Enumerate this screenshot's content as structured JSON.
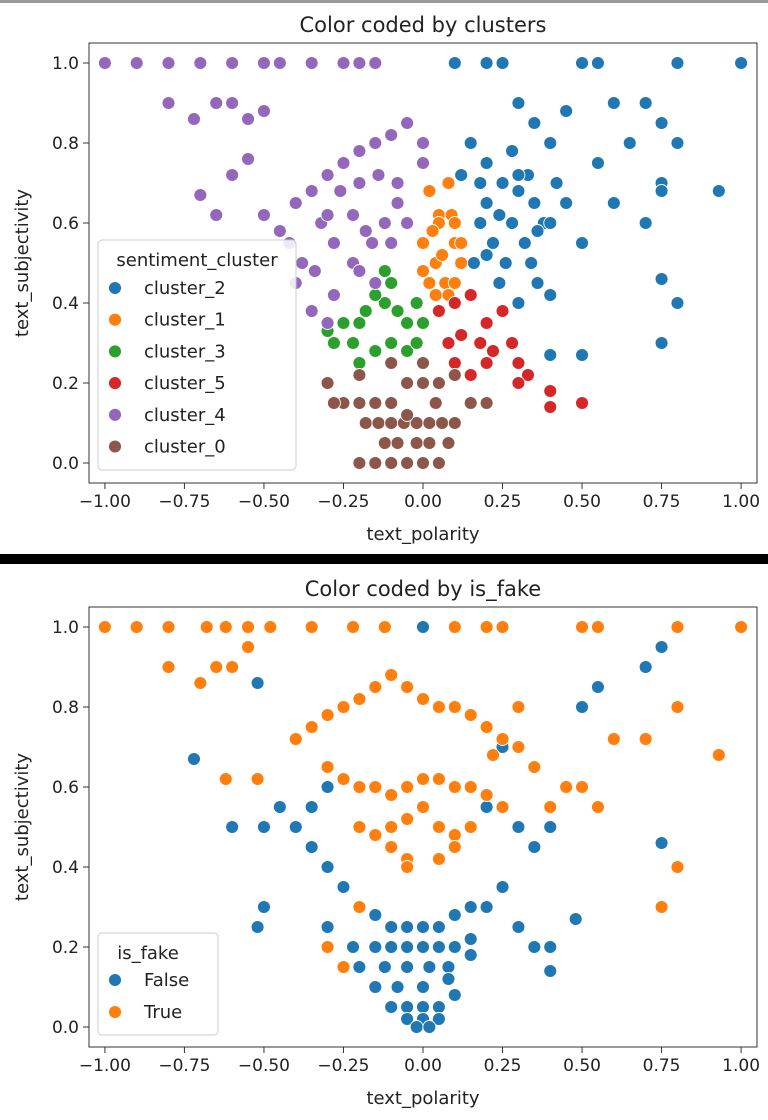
{
  "chart_data": [
    {
      "type": "scatter",
      "title": "Color coded by clusters",
      "xlabel": "text_polarity",
      "ylabel": "text_subjectivity",
      "xlim": [
        -1.05,
        1.05
      ],
      "ylim": [
        -0.05,
        1.05
      ],
      "xticks": [
        "-1.00",
        "-0.75",
        "-0.50",
        "-0.25",
        "0.00",
        "0.25",
        "0.50",
        "0.75",
        "1.00"
      ],
      "yticks": [
        "0.0",
        "0.2",
        "0.4",
        "0.6",
        "0.8",
        "1.0"
      ],
      "legend": {
        "title": "sentiment_cluster",
        "position": "left-middle",
        "entries": [
          {
            "label": "cluster_2",
            "color": "#1f77b4"
          },
          {
            "label": "cluster_1",
            "color": "#ff7f0e"
          },
          {
            "label": "cluster_3",
            "color": "#2ca02c"
          },
          {
            "label": "cluster_5",
            "color": "#d62728"
          },
          {
            "label": "cluster_4",
            "color": "#9467bd"
          },
          {
            "label": "cluster_0",
            "color": "#8c564b"
          }
        ]
      },
      "series": [
        {
          "name": "cluster_2",
          "x": [
            0.1,
            0.2,
            0.25,
            0.5,
            0.55,
            0.8,
            1.0,
            0.3,
            0.35,
            0.45,
            0.6,
            0.7,
            0.75,
            0.4,
            0.55,
            0.65,
            0.33,
            0.42,
            0.8,
            0.75,
            0.6,
            0.93,
            0.75,
            0.7,
            0.75,
            0.8,
            0.75,
            0.5,
            0.4,
            0.15,
            0.2,
            0.25,
            0.3,
            0.35,
            0.12,
            0.18,
            0.28,
            0.38,
            0.22,
            0.32,
            0.26,
            0.16,
            0.36,
            0.24,
            0.3,
            0.4,
            0.45,
            0.5,
            0.2,
            0.28,
            0.34,
            0.18,
            0.24,
            0.3,
            0.36,
            0.2,
            0.4
          ],
          "y": [
            1.0,
            1.0,
            1.0,
            1.0,
            1.0,
            1.0,
            1.0,
            0.9,
            0.85,
            0.88,
            0.9,
            0.9,
            0.85,
            0.8,
            0.75,
            0.8,
            0.72,
            0.7,
            0.8,
            0.7,
            0.65,
            0.68,
            0.46,
            0.6,
            0.3,
            0.4,
            0.68,
            0.27,
            0.27,
            0.8,
            0.75,
            0.7,
            0.72,
            0.65,
            0.72,
            0.6,
            0.6,
            0.6,
            0.55,
            0.55,
            0.5,
            0.5,
            0.45,
            0.45,
            0.4,
            0.6,
            0.65,
            0.55,
            0.65,
            0.78,
            0.5,
            0.7,
            0.62,
            0.68,
            0.58,
            0.52,
            0.42
          ]
        },
        {
          "name": "cluster_1",
          "x": [
            0.02,
            0.05,
            0.08,
            0.1,
            0.12,
            0.0,
            0.04,
            0.07,
            0.1,
            0.02,
            0.05,
            0.09,
            0.12,
            0.0,
            0.04,
            0.08,
            0.06,
            0.1,
            0.03
          ],
          "y": [
            0.68,
            0.62,
            0.7,
            0.55,
            0.5,
            0.55,
            0.5,
            0.45,
            0.45,
            0.45,
            0.6,
            0.62,
            0.55,
            0.48,
            0.42,
            0.42,
            0.52,
            0.6,
            0.58
          ]
        },
        {
          "name": "cluster_3",
          "x": [
            -0.1,
            -0.12,
            -0.15,
            -0.18,
            -0.2,
            -0.25,
            -0.22,
            -0.28,
            -0.08,
            -0.05,
            -0.02,
            0.0,
            -0.15,
            -0.1,
            -0.05,
            -0.2,
            -0.3,
            -0.02,
            -0.12
          ],
          "y": [
            0.45,
            0.4,
            0.42,
            0.38,
            0.35,
            0.35,
            0.3,
            0.3,
            0.38,
            0.35,
            0.4,
            0.35,
            0.28,
            0.3,
            0.28,
            0.25,
            0.33,
            0.3,
            0.48
          ]
        },
        {
          "name": "cluster_5",
          "x": [
            0.05,
            0.1,
            0.15,
            0.2,
            0.25,
            0.08,
            0.12,
            0.18,
            0.22,
            0.28,
            0.1,
            0.15,
            0.2,
            0.3,
            0.33,
            0.3,
            0.4,
            0.4,
            0.5
          ],
          "y": [
            0.38,
            0.4,
            0.42,
            0.35,
            0.38,
            0.3,
            0.32,
            0.3,
            0.28,
            0.3,
            0.25,
            0.22,
            0.25,
            0.25,
            0.22,
            0.2,
            0.18,
            0.14,
            0.15
          ]
        },
        {
          "name": "cluster_4",
          "x": [
            -1.0,
            -0.9,
            -0.8,
            -0.7,
            -0.6,
            -0.5,
            -0.45,
            -0.35,
            -0.25,
            -0.2,
            -0.15,
            -0.8,
            -0.72,
            -0.65,
            -0.6,
            -0.55,
            -0.5,
            -0.7,
            -0.65,
            -0.6,
            -0.55,
            -0.5,
            -0.45,
            -0.4,
            -0.35,
            -0.3,
            -0.25,
            -0.2,
            -0.15,
            -0.1,
            -0.05,
            0.0,
            -0.42,
            -0.38,
            -0.32,
            -0.28,
            -0.22,
            -0.18,
            -0.12,
            -0.08,
            -0.4,
            -0.34,
            -0.28,
            -0.22,
            -0.16,
            -0.3,
            -0.26,
            -0.2,
            -0.14,
            -0.08,
            -0.05,
            0.0,
            -0.35,
            -0.3,
            -0.1,
            -0.2,
            -0.15
          ],
          "y": [
            1.0,
            1.0,
            1.0,
            1.0,
            1.0,
            1.0,
            1.0,
            1.0,
            1.0,
            1.0,
            1.0,
            0.9,
            0.86,
            0.9,
            0.9,
            0.86,
            0.88,
            0.67,
            0.62,
            0.72,
            0.76,
            0.62,
            0.58,
            0.65,
            0.68,
            0.72,
            0.75,
            0.78,
            0.8,
            0.82,
            0.85,
            0.8,
            0.55,
            0.5,
            0.6,
            0.55,
            0.62,
            0.58,
            0.6,
            0.65,
            0.45,
            0.48,
            0.42,
            0.5,
            0.55,
            0.62,
            0.68,
            0.7,
            0.72,
            0.7,
            0.6,
            0.75,
            0.38,
            0.35,
            0.55,
            0.48,
            0.45
          ]
        },
        {
          "name": "cluster_0",
          "x": [
            -0.2,
            -0.15,
            -0.1,
            -0.05,
            0.0,
            0.05,
            -0.12,
            -0.08,
            -0.02,
            0.02,
            0.08,
            -0.18,
            -0.14,
            -0.1,
            -0.06,
            -0.02,
            0.02,
            0.06,
            0.1,
            -0.25,
            -0.2,
            -0.15,
            -0.1,
            0.15,
            0.2,
            -0.05,
            0.0,
            0.05,
            -0.2,
            -0.1,
            0.0,
            0.1,
            -0.3,
            -0.28,
            -0.05,
            0.04
          ],
          "y": [
            0.0,
            0.0,
            0.0,
            0.0,
            0.0,
            0.0,
            0.05,
            0.05,
            0.05,
            0.05,
            0.05,
            0.1,
            0.1,
            0.1,
            0.1,
            0.1,
            0.1,
            0.1,
            0.1,
            0.15,
            0.15,
            0.15,
            0.15,
            0.15,
            0.15,
            0.2,
            0.2,
            0.2,
            0.22,
            0.25,
            0.25,
            0.22,
            0.2,
            0.15,
            0.12,
            0.15
          ]
        }
      ]
    },
    {
      "type": "scatter",
      "title": "Color coded by is_fake",
      "xlabel": "text_polarity",
      "ylabel": "text_subjectivity",
      "xlim": [
        -1.05,
        1.05
      ],
      "ylim": [
        -0.05,
        1.05
      ],
      "xticks": [
        "-1.00",
        "-0.75",
        "-0.50",
        "-0.25",
        "0.00",
        "0.25",
        "0.50",
        "0.75",
        "1.00"
      ],
      "yticks": [
        "0.0",
        "0.2",
        "0.4",
        "0.6",
        "0.8",
        "1.0"
      ],
      "legend": {
        "title": "is_fake",
        "position": "bottom-left",
        "entries": [
          {
            "label": "False",
            "color": "#1f77b4"
          },
          {
            "label": "True",
            "color": "#ff7f0e"
          }
        ]
      },
      "series": [
        {
          "name": "False",
          "x": [
            -0.8,
            0.0,
            -0.52,
            -0.72,
            -0.6,
            -0.5,
            -0.5,
            -0.52,
            0.75,
            0.7,
            0.55,
            0.5,
            0.75,
            0.48,
            0.4,
            0.4,
            0.35,
            0.3,
            -0.45,
            -0.4,
            -0.35,
            -0.3,
            -0.25,
            -0.2,
            -0.15,
            -0.1,
            -0.05,
            0.0,
            0.05,
            0.1,
            0.15,
            0.2,
            0.25,
            -0.3,
            -0.22,
            -0.15,
            -0.1,
            -0.05,
            0.0,
            0.05,
            0.1,
            0.15,
            -0.2,
            -0.12,
            -0.05,
            0.02,
            0.08,
            0.15,
            -0.15,
            -0.08,
            0.0,
            0.08,
            -0.1,
            -0.05,
            0.0,
            0.05,
            0.1,
            -0.05,
            0.0,
            0.05,
            -0.02,
            0.02,
            0.3,
            0.2,
            0.1,
            -0.3,
            -0.35,
            0.35,
            0.4,
            0.25
          ],
          "y": [
            1.0,
            1.0,
            0.86,
            0.67,
            0.5,
            0.5,
            0.3,
            0.25,
            0.95,
            0.9,
            0.85,
            0.8,
            0.46,
            0.27,
            0.2,
            0.14,
            0.2,
            0.25,
            0.55,
            0.5,
            0.45,
            0.4,
            0.35,
            0.3,
            0.28,
            0.25,
            0.25,
            0.25,
            0.25,
            0.28,
            0.3,
            0.3,
            0.35,
            0.25,
            0.2,
            0.2,
            0.2,
            0.2,
            0.2,
            0.2,
            0.2,
            0.22,
            0.15,
            0.15,
            0.15,
            0.15,
            0.15,
            0.18,
            0.1,
            0.1,
            0.1,
            0.12,
            0.05,
            0.05,
            0.05,
            0.05,
            0.08,
            0.02,
            0.02,
            0.02,
            0.0,
            0.0,
            0.5,
            0.55,
            0.6,
            0.6,
            0.55,
            0.45,
            0.5,
            0.7
          ]
        },
        {
          "name": "True",
          "x": [
            -1.0,
            -0.9,
            -0.8,
            -0.68,
            -0.62,
            -0.55,
            -0.48,
            -0.35,
            -0.22,
            -0.12,
            0.1,
            0.2,
            0.25,
            0.5,
            0.55,
            0.8,
            1.0,
            -0.8,
            -0.65,
            -0.6,
            -0.55,
            -0.7,
            -0.62,
            -0.52,
            0.6,
            0.7,
            0.8,
            0.93,
            0.8,
            0.75,
            -0.4,
            -0.35,
            -0.3,
            -0.25,
            -0.2,
            -0.15,
            -0.1,
            -0.05,
            0.0,
            0.05,
            0.1,
            0.15,
            0.2,
            0.25,
            0.3,
            -0.3,
            -0.25,
            -0.2,
            -0.15,
            -0.1,
            -0.05,
            0.0,
            0.05,
            0.1,
            0.15,
            0.2,
            0.25,
            -0.2,
            -0.15,
            -0.1,
            -0.05,
            0.0,
            0.05,
            0.1,
            0.15,
            -0.1,
            -0.05,
            0.05,
            0.1,
            -0.2,
            -0.05,
            0.45,
            0.35,
            0.4,
            0.55,
            0.5,
            -0.25,
            -0.3,
            0.3,
            0.22
          ],
          "y": [
            1.0,
            1.0,
            1.0,
            1.0,
            1.0,
            1.0,
            1.0,
            1.0,
            1.0,
            1.0,
            1.0,
            1.0,
            1.0,
            1.0,
            1.0,
            1.0,
            1.0,
            0.9,
            0.9,
            0.9,
            0.95,
            0.86,
            0.62,
            0.62,
            0.72,
            0.72,
            0.8,
            0.68,
            0.4,
            0.3,
            0.72,
            0.75,
            0.78,
            0.8,
            0.82,
            0.85,
            0.88,
            0.85,
            0.82,
            0.8,
            0.8,
            0.78,
            0.75,
            0.72,
            0.7,
            0.65,
            0.62,
            0.6,
            0.6,
            0.58,
            0.6,
            0.62,
            0.62,
            0.6,
            0.6,
            0.58,
            0.55,
            0.5,
            0.48,
            0.5,
            0.52,
            0.55,
            0.5,
            0.48,
            0.5,
            0.45,
            0.42,
            0.42,
            0.45,
            0.3,
            0.4,
            0.6,
            0.65,
            0.55,
            0.55,
            0.6,
            0.15,
            0.2,
            0.8,
            0.68
          ]
        }
      ]
    }
  ]
}
